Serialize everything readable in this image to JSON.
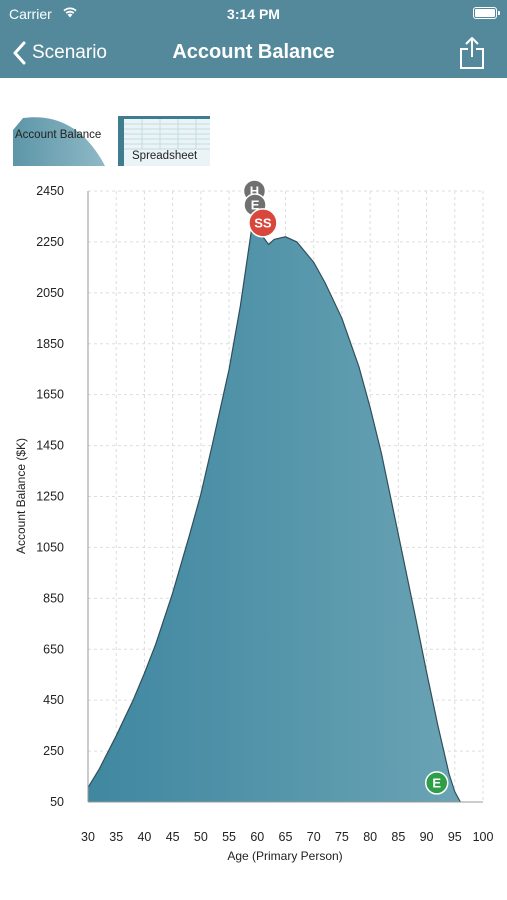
{
  "status_bar": {
    "carrier": "Carrier",
    "time": "3:14 PM"
  },
  "nav": {
    "back_label": "Scenario",
    "title": "Account Balance"
  },
  "thumbnails": [
    {
      "label": "Account Balance"
    },
    {
      "label": "Spreadsheet"
    }
  ],
  "colors": {
    "nav": "#54899b",
    "area_fill": "#4b8ea3",
    "marker_red": "#d9463b",
    "marker_green": "#2e9e47",
    "marker_gray": "#707070"
  },
  "chart_data": {
    "type": "area",
    "xlabel": "Age (Primary Person)",
    "ylabel": "Account Balance ($K)",
    "xlim": [
      30,
      100
    ],
    "ylim": [
      50,
      2450
    ],
    "xticks": [
      30,
      35,
      40,
      45,
      50,
      55,
      60,
      65,
      70,
      75,
      80,
      85,
      90,
      95,
      100
    ],
    "yticks": [
      50,
      250,
      450,
      650,
      850,
      1050,
      1250,
      1450,
      1650,
      1850,
      2050,
      2250,
      2450
    ],
    "grid": true,
    "series": [
      {
        "x": [
          30,
          32,
          35,
          38,
          40,
          42,
          45,
          48,
          50,
          52,
          55,
          57,
          59,
          60,
          61,
          62,
          63,
          65,
          67,
          70,
          72,
          75,
          78,
          80,
          82,
          85,
          88,
          90,
          92,
          94,
          95,
          96
        ],
        "values": [
          107,
          180,
          310,
          450,
          555,
          670,
          870,
          1100,
          1260,
          1450,
          1750,
          2000,
          2300,
          2290,
          2270,
          2240,
          2260,
          2270,
          2250,
          2170,
          2090,
          1950,
          1760,
          1600,
          1420,
          1100,
          780,
          560,
          350,
          160,
          90,
          50
        ]
      }
    ],
    "markers": [
      {
        "label": "H",
        "x": 59.5,
        "y": 2450,
        "color": "#707070"
      },
      {
        "label": "E",
        "x": 59.6,
        "y": 2395,
        "color": "#707070"
      },
      {
        "label": "SS",
        "x": 61.0,
        "y": 2325,
        "color": "#d9463b"
      },
      {
        "label": "E",
        "x": 91.8,
        "y": 125,
        "color": "#2e9e47"
      }
    ]
  }
}
